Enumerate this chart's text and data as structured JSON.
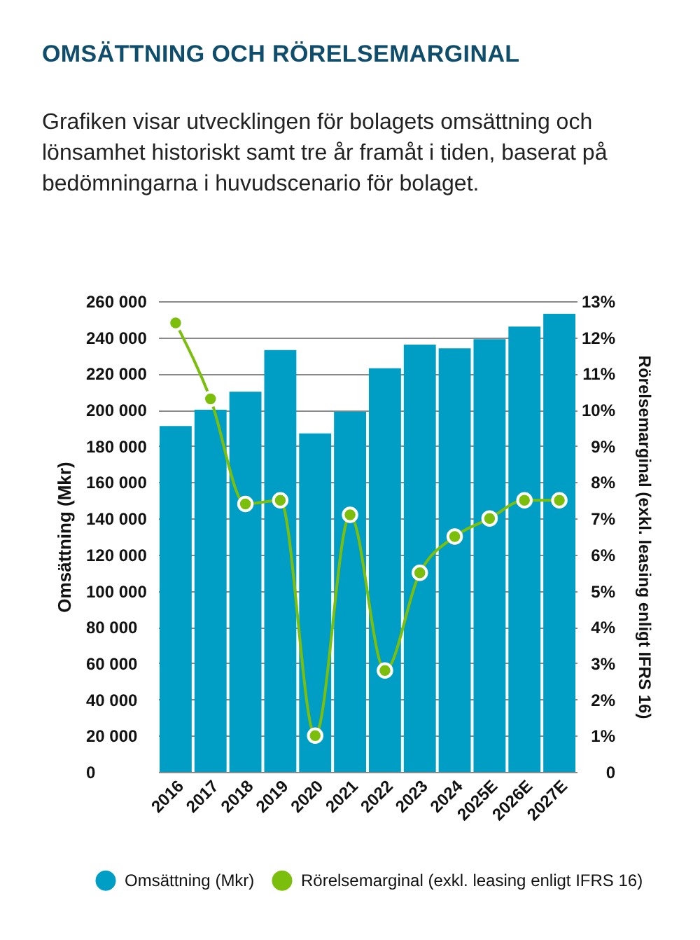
{
  "chart_data": {
    "type": "bar",
    "title": "OMSÄTTNING OCH RÖRELSEMARGINAL",
    "subtitle": "Grafiken visar utvecklingen för bolagets omsättning och lönsamhet historiskt samt tre år framåt i tiden, baserat på bedömningarna i huvudscenario för bolaget.",
    "ylabel": "Omsättning (Mkr)",
    "y2label": "Rörelsemarginal (exkl. leasing enligt IFRS 16)",
    "categories": [
      "2016",
      "2017",
      "2018",
      "2019",
      "2020",
      "2021",
      "2022",
      "2023",
      "2024",
      "2025E",
      "2026E",
      "2027E"
    ],
    "series": [
      {
        "name": "Omsättning (Mkr)",
        "color": "#009ec4",
        "values": [
          191000,
          200000,
          210000,
          233000,
          187000,
          199000,
          223000,
          236000,
          234000,
          239000,
          246000,
          253000
        ]
      },
      {
        "name": "Rörelsemarginal (exkl. leasing enligt IFRS 16)",
        "type": "line",
        "axis": "y2",
        "color": "#7bbf0c",
        "values": [
          12.4,
          10.3,
          7.4,
          7.5,
          1.0,
          7.1,
          2.8,
          5.5,
          6.5,
          7.0,
          7.5,
          7.5
        ]
      }
    ],
    "ylim": [
      0,
      260000
    ],
    "yticks": [
      0,
      {
        "value": 20000,
        "label": "20 000"
      },
      {
        "value": 40000,
        "label": "40 000"
      },
      {
        "value": 60000,
        "label": "60 000"
      },
      {
        "value": 80000,
        "label": "80 000"
      },
      {
        "value": 100000,
        "label": "100 000"
      },
      {
        "value": 120000,
        "label": "120 000"
      },
      {
        "value": 140000,
        "label": "140 000"
      },
      {
        "value": 160000,
        "label": "160 000"
      },
      {
        "value": 180000,
        "label": "180 000"
      },
      {
        "value": 200000,
        "label": "200 000"
      },
      {
        "value": 220000,
        "label": "220 000"
      },
      {
        "value": 240000,
        "label": "240 000"
      },
      {
        "value": 260000,
        "label": "260 000"
      }
    ],
    "y2lim": [
      0,
      13
    ],
    "y2ticks": [
      0,
      {
        "value": 1,
        "label": "1%"
      },
      {
        "value": 2,
        "label": "2%"
      },
      {
        "value": 3,
        "label": "3%"
      },
      {
        "value": 4,
        "label": "4%"
      },
      {
        "value": 5,
        "label": "5%"
      },
      {
        "value": 6,
        "label": "6%"
      },
      {
        "value": 7,
        "label": "7%"
      },
      {
        "value": 8,
        "label": "8%"
      },
      {
        "value": 9,
        "label": "9%"
      },
      {
        "value": 10,
        "label": "10%"
      },
      {
        "value": 11,
        "label": "11%"
      },
      {
        "value": 12,
        "label": "12%"
      },
      {
        "value": 13,
        "label": "13%"
      }
    ],
    "grid": "y",
    "legend": "bottom",
    "marker": "circle",
    "line_style": "solid"
  }
}
